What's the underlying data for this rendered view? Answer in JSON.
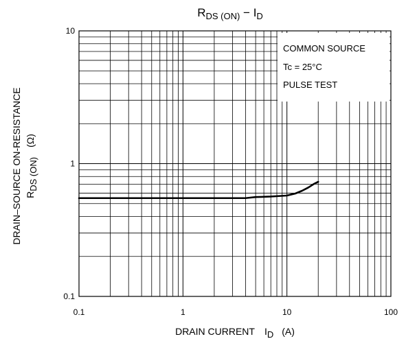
{
  "chart_data": {
    "type": "line",
    "title": {
      "main": "R",
      "sub": "DS (ON)",
      "sep": " − ",
      "var": "I",
      "var_sub": "D"
    },
    "x_axis": {
      "label": "DRAIN CURRENT",
      "symbol": "I",
      "symbol_sub": "D",
      "unit": "(A)",
      "scale": "log",
      "range": [
        0.1,
        100
      ],
      "ticks": [
        {
          "value": 0.1,
          "label": "0.1"
        },
        {
          "value": 1,
          "label": "1"
        },
        {
          "value": 10,
          "label": "10"
        },
        {
          "value": 100,
          "label": "100"
        }
      ]
    },
    "y_axis": {
      "label_line1": "DRAIN–SOURCE ON-RESISTANCE",
      "symbol": "R",
      "symbol_sub": "DS (ON)",
      "unit": "(Ω)",
      "scale": "log",
      "range": [
        0.1,
        10
      ],
      "ticks": [
        {
          "value": 0.1,
          "label": "0.1"
        },
        {
          "value": 1,
          "label": "1"
        },
        {
          "value": 10,
          "label": "10"
        }
      ]
    },
    "grid": true,
    "legend": {
      "placement": "top-right",
      "lines": [
        "COMMON SOURCE",
        "Tc = 25°C",
        "PULSE TEST"
      ]
    },
    "series": [
      {
        "x": [
          0.1,
          0.5,
          1,
          2,
          4,
          5,
          7,
          10,
          12,
          14,
          16,
          18,
          20
        ],
        "y": [
          0.55,
          0.55,
          0.55,
          0.55,
          0.55,
          0.56,
          0.565,
          0.575,
          0.595,
          0.625,
          0.66,
          0.7,
          0.73
        ]
      }
    ],
    "colors": {
      "line": "#000000",
      "grid": "#000000",
      "background": "#ffffff"
    }
  }
}
